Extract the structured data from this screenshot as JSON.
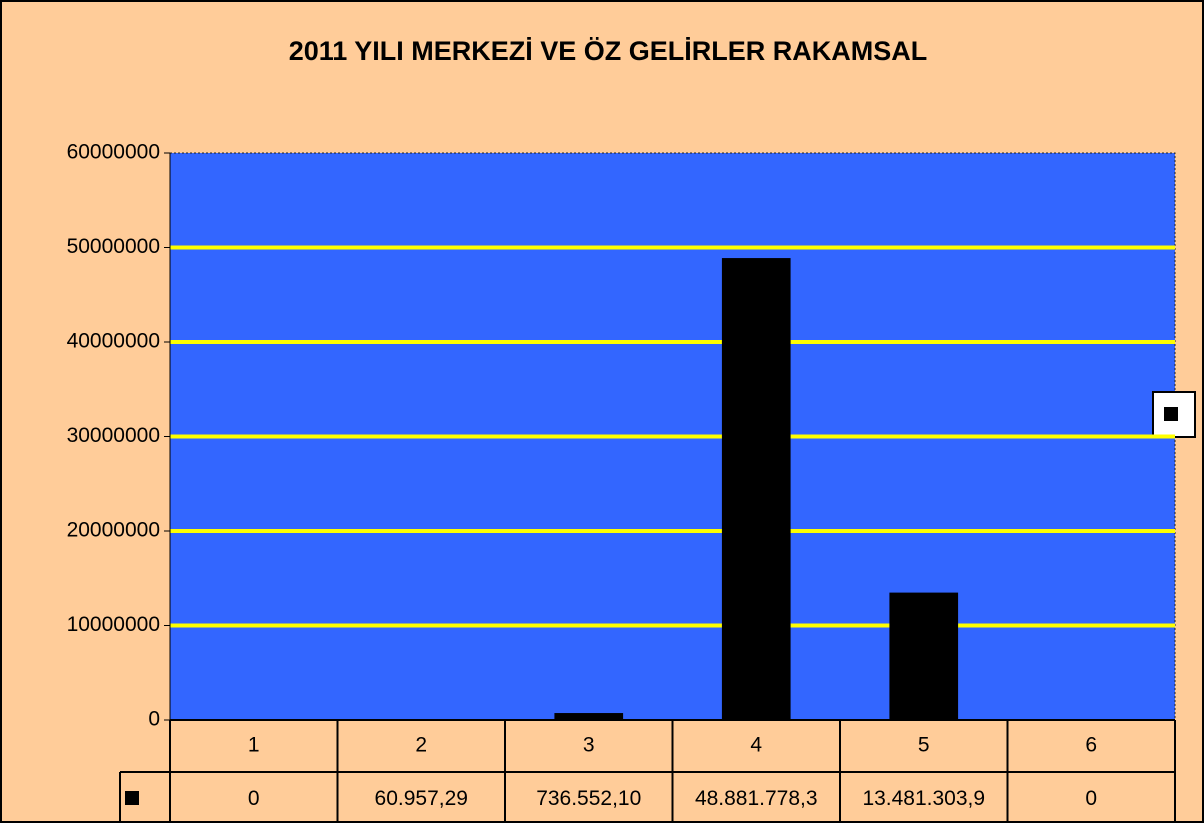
{
  "chart_data": {
    "type": "bar",
    "title": "2011 YILI MERKEZİ VE ÖZ GELİRLER RAKAMSAL",
    "categories": [
      "1",
      "2",
      "3",
      "4",
      "5",
      "6"
    ],
    "values": [
      0,
      60957.29,
      736552.1,
      48881778.3,
      13481303.9,
      0
    ],
    "value_labels": [
      "0",
      "60.957,29",
      "736.552,10",
      "48.881.778,3",
      "13.481.303,9",
      "0"
    ],
    "color": "#000000",
    "ylim": [
      0,
      60000000
    ],
    "yticks": [
      0,
      10000000,
      20000000,
      30000000,
      40000000,
      50000000,
      60000000
    ],
    "grid": true
  }
}
